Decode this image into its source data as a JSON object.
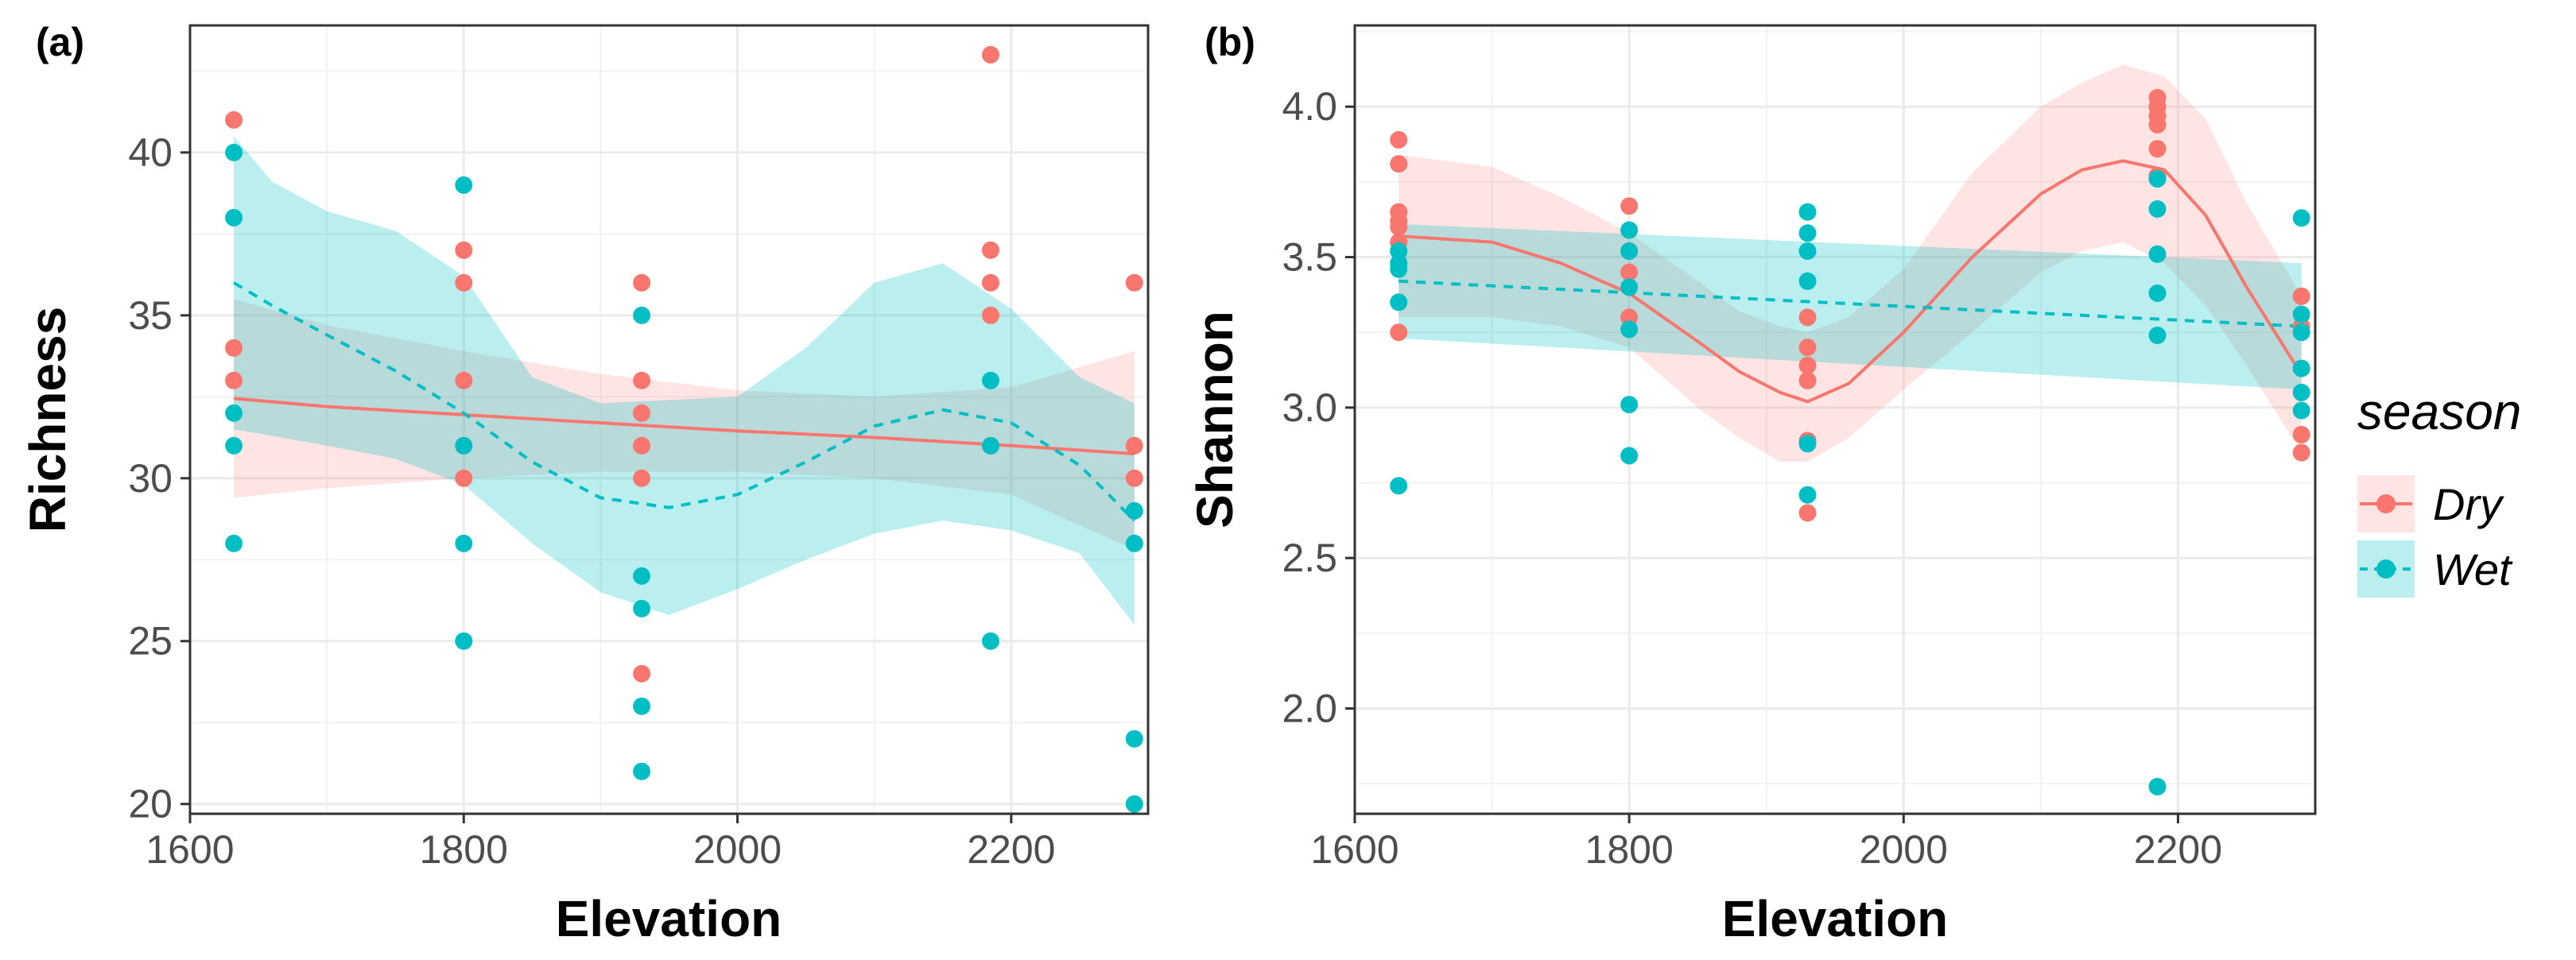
{
  "colors": {
    "dry": "#F8766D",
    "wet": "#00BFC4"
  },
  "legend": {
    "title": "season",
    "items": [
      {
        "label": "Dry",
        "color": "#F8766D",
        "linetype": "solid"
      },
      {
        "label": "Wet",
        "color": "#00BFC4",
        "linetype": "dashed"
      }
    ]
  },
  "chart_data": [
    {
      "type": "scatter",
      "panel_label": "(a)",
      "xlabel": "Elevation",
      "ylabel": "Richness",
      "xlim": [
        1600,
        2300
      ],
      "ylim": [
        19.7,
        43.9
      ],
      "xticks": [
        "1600",
        "1800",
        "2000",
        "2200"
      ],
      "xtick_values": [
        1600,
        1800,
        2000,
        2200
      ],
      "yticks": [
        "20",
        "25",
        "30",
        "35",
        "40"
      ],
      "ytick_values": [
        20,
        25,
        30,
        35,
        40
      ],
      "grid": true,
      "points": {
        "Dry": [
          [
            1632,
            41
          ],
          [
            1632,
            34
          ],
          [
            1632,
            33
          ],
          [
            1800,
            37
          ],
          [
            1800,
            36
          ],
          [
            1800,
            33
          ],
          [
            1800,
            31
          ],
          [
            1800,
            30
          ],
          [
            1930,
            36
          ],
          [
            1930,
            33
          ],
          [
            1930,
            32
          ],
          [
            1930,
            31
          ],
          [
            1930,
            30
          ],
          [
            1930,
            24
          ],
          [
            2185,
            43
          ],
          [
            2185,
            37
          ],
          [
            2185,
            36
          ],
          [
            2185,
            35
          ],
          [
            2185,
            31
          ],
          [
            2290,
            36
          ],
          [
            2290,
            31
          ],
          [
            2290,
            30
          ]
        ],
        "Wet": [
          [
            1632,
            40
          ],
          [
            1632,
            38
          ],
          [
            1632,
            32
          ],
          [
            1632,
            31
          ],
          [
            1632,
            28
          ],
          [
            1800,
            39
          ],
          [
            1800,
            31
          ],
          [
            1800,
            28
          ],
          [
            1800,
            25
          ],
          [
            1930,
            35
          ],
          [
            1930,
            27
          ],
          [
            1930,
            26
          ],
          [
            1930,
            23
          ],
          [
            1930,
            21
          ],
          [
            2185,
            33
          ],
          [
            2185,
            31
          ],
          [
            2185,
            25
          ],
          [
            2290,
            29
          ],
          [
            2290,
            28
          ],
          [
            2290,
            22
          ],
          [
            2290,
            20
          ]
        ]
      },
      "fits": {
        "Dry": {
          "x": [
            1632,
            1700,
            1800,
            1900,
            2000,
            2100,
            2200,
            2290
          ],
          "y": [
            32.45,
            32.2,
            31.95,
            31.7,
            31.45,
            31.25,
            31.0,
            30.75
          ],
          "lower": [
            29.4,
            29.7,
            30.0,
            30.2,
            30.2,
            30.0,
            29.5,
            27.8
          ],
          "upper": [
            35.5,
            34.7,
            33.9,
            33.2,
            32.7,
            32.5,
            32.8,
            33.9
          ]
        },
        "Wet": {
          "x": [
            1632,
            1660,
            1700,
            1750,
            1800,
            1850,
            1900,
            1950,
            2000,
            2050,
            2100,
            2150,
            2200,
            2250,
            2290
          ],
          "y": [
            36.0,
            35.3,
            34.4,
            33.3,
            32.0,
            30.5,
            29.4,
            29.1,
            29.5,
            30.5,
            31.6,
            32.1,
            31.7,
            30.4,
            28.7
          ],
          "lower": [
            31.5,
            31.3,
            31.0,
            30.6,
            29.8,
            28.0,
            26.5,
            25.8,
            26.6,
            27.5,
            28.3,
            28.7,
            28.4,
            27.7,
            25.5
          ],
          "upper": [
            40.5,
            39.1,
            38.2,
            37.6,
            36.2,
            33.1,
            32.3,
            32.4,
            32.5,
            34.0,
            36.0,
            36.6,
            35.2,
            33.1,
            32.3
          ]
        }
      }
    },
    {
      "type": "scatter",
      "panel_label": "(b)",
      "xlabel": "Elevation",
      "ylabel": "Shannon",
      "xlim": [
        1600,
        2300
      ],
      "ylim": [
        1.65,
        4.27
      ],
      "xticks": [
        "1600",
        "1800",
        "2000",
        "2200"
      ],
      "xtick_values": [
        1600,
        1800,
        2000,
        2200
      ],
      "yticks": [
        "2.0",
        "2.5",
        "3.0",
        "3.5",
        "4.0"
      ],
      "ytick_values": [
        2.0,
        2.5,
        3.0,
        3.5,
        4.0
      ],
      "grid": true,
      "points": {
        "Dry": [
          [
            1632,
            3.89
          ],
          [
            1632,
            3.81
          ],
          [
            1632,
            3.65
          ],
          [
            1632,
            3.62
          ],
          [
            1632,
            3.6
          ],
          [
            1632,
            3.55
          ],
          [
            1632,
            3.25
          ],
          [
            1800,
            3.67
          ],
          [
            1800,
            3.52
          ],
          [
            1800,
            3.45
          ],
          [
            1800,
            3.3
          ],
          [
            1930,
            3.3
          ],
          [
            1930,
            3.2
          ],
          [
            1930,
            3.14
          ],
          [
            1930,
            3.09
          ],
          [
            1930,
            2.89
          ],
          [
            1930,
            2.65
          ],
          [
            2185,
            4.03
          ],
          [
            2185,
            4.0
          ],
          [
            2185,
            3.97
          ],
          [
            2185,
            3.94
          ],
          [
            2185,
            3.86
          ],
          [
            2185,
            3.77
          ],
          [
            2290,
            3.37
          ],
          [
            2290,
            3.27
          ],
          [
            2290,
            2.91
          ],
          [
            2290,
            2.85
          ]
        ],
        "Wet": [
          [
            1632,
            3.52
          ],
          [
            1632,
            3.48
          ],
          [
            1632,
            3.46
          ],
          [
            1632,
            3.35
          ],
          [
            1632,
            2.74
          ],
          [
            1800,
            3.59
          ],
          [
            1800,
            3.52
          ],
          [
            1800,
            3.4
          ],
          [
            1800,
            3.26
          ],
          [
            1800,
            3.01
          ],
          [
            1800,
            2.84
          ],
          [
            1930,
            3.65
          ],
          [
            1930,
            3.58
          ],
          [
            1930,
            3.52
          ],
          [
            1930,
            3.42
          ],
          [
            1930,
            2.88
          ],
          [
            1930,
            2.71
          ],
          [
            2185,
            3.76
          ],
          [
            2185,
            3.66
          ],
          [
            2185,
            3.51
          ],
          [
            2185,
            3.38
          ],
          [
            2185,
            3.24
          ],
          [
            2185,
            1.74
          ],
          [
            2290,
            3.63
          ],
          [
            2290,
            3.31
          ],
          [
            2290,
            3.25
          ],
          [
            2290,
            3.13
          ],
          [
            2290,
            3.05
          ],
          [
            2290,
            2.99
          ]
        ]
      },
      "fits": {
        "Dry": {
          "x": [
            1632,
            1700,
            1750,
            1800,
            1850,
            1880,
            1910,
            1930,
            1960,
            2000,
            2050,
            2100,
            2130,
            2160,
            2190,
            2220,
            2250,
            2290
          ],
          "y": [
            3.57,
            3.55,
            3.48,
            3.38,
            3.22,
            3.12,
            3.05,
            3.02,
            3.08,
            3.25,
            3.5,
            3.71,
            3.79,
            3.82,
            3.79,
            3.64,
            3.4,
            3.11
          ],
          "lower": [
            3.3,
            3.3,
            3.27,
            3.2,
            3.0,
            2.9,
            2.82,
            2.82,
            2.9,
            3.06,
            3.25,
            3.45,
            3.52,
            3.55,
            3.48,
            3.34,
            3.14,
            2.85
          ],
          "upper": [
            3.84,
            3.8,
            3.7,
            3.58,
            3.42,
            3.32,
            3.27,
            3.25,
            3.3,
            3.46,
            3.78,
            4.0,
            4.08,
            4.14,
            4.1,
            3.96,
            3.68,
            3.37
          ]
        },
        "Wet": {
          "x": [
            1632,
            2290
          ],
          "y": [
            3.42,
            3.27
          ],
          "lower": [
            3.23,
            3.06
          ],
          "upper": [
            3.61,
            3.48
          ]
        }
      }
    }
  ]
}
